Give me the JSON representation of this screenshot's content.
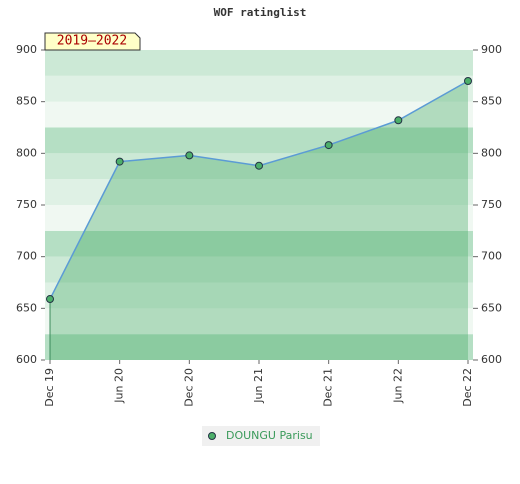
{
  "chart_data": {
    "type": "line",
    "title": "WOF ratinglist",
    "annotation": "2019–2022",
    "categories": [
      "Dec 19",
      "Jun 20",
      "Dec 20",
      "Jun 21",
      "Dec 21",
      "Jun 22",
      "Dec 22"
    ],
    "series": [
      {
        "name": "DOUNGU Parisu",
        "color": "#5b9bd5",
        "values": [
          659,
          792,
          798,
          788,
          808,
          832,
          870
        ]
      }
    ],
    "ylim": [
      600,
      900
    ],
    "yticks": [
      600,
      650,
      700,
      750,
      800,
      850,
      900
    ],
    "y2lim": [
      600,
      900
    ],
    "y2ticks": [
      600,
      650,
      700,
      750,
      800,
      850,
      900
    ]
  }
}
